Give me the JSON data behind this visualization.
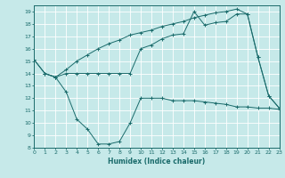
{
  "xlabel": "Humidex (Indice chaleur)",
  "xlim": [
    0,
    23
  ],
  "ylim": [
    8,
    19.5
  ],
  "yticks": [
    8,
    9,
    10,
    11,
    12,
    13,
    14,
    15,
    16,
    17,
    18,
    19
  ],
  "xticks": [
    0,
    1,
    2,
    3,
    4,
    5,
    6,
    7,
    8,
    9,
    10,
    11,
    12,
    13,
    14,
    15,
    16,
    17,
    18,
    19,
    20,
    21,
    22,
    23
  ],
  "bg_color": "#c6e9e9",
  "line_color": "#1a6b6b",
  "grid_color": "#ffffff",
  "line1_x": [
    0,
    1,
    2,
    3,
    4,
    5,
    6,
    7,
    8,
    9,
    10,
    11,
    12,
    13,
    14,
    15,
    16,
    17,
    18,
    19,
    20,
    21,
    22,
    23
  ],
  "line1_y": [
    15.1,
    14.0,
    13.7,
    14.0,
    14.0,
    14.0,
    14.0,
    14.0,
    14.0,
    14.0,
    16.0,
    16.3,
    16.8,
    17.1,
    17.2,
    19.0,
    17.9,
    18.1,
    18.2,
    18.8,
    18.8,
    15.3,
    12.2,
    11.2
  ],
  "line2_x": [
    0,
    1,
    2,
    3,
    4,
    5,
    6,
    7,
    8,
    9,
    10,
    11,
    12,
    13,
    14,
    15,
    16,
    17,
    18,
    19,
    20,
    21,
    22,
    23
  ],
  "line2_y": [
    15.1,
    14.0,
    13.7,
    14.3,
    15.0,
    15.5,
    16.0,
    16.4,
    16.7,
    17.1,
    17.3,
    17.5,
    17.8,
    18.0,
    18.2,
    18.5,
    18.7,
    18.9,
    19.0,
    19.2,
    18.8,
    15.3,
    12.2,
    11.2
  ],
  "line3_x": [
    1,
    2,
    3,
    4,
    5,
    6,
    7,
    8,
    9,
    10,
    11,
    12,
    13,
    14,
    15,
    16,
    17,
    18,
    19,
    20,
    21,
    22,
    23
  ],
  "line3_y": [
    14.0,
    13.7,
    12.5,
    10.3,
    9.5,
    8.3,
    8.3,
    8.5,
    10.0,
    12.0,
    12.0,
    12.0,
    11.8,
    11.8,
    11.8,
    11.7,
    11.6,
    11.5,
    11.3,
    11.3,
    11.2,
    11.2,
    11.1
  ]
}
